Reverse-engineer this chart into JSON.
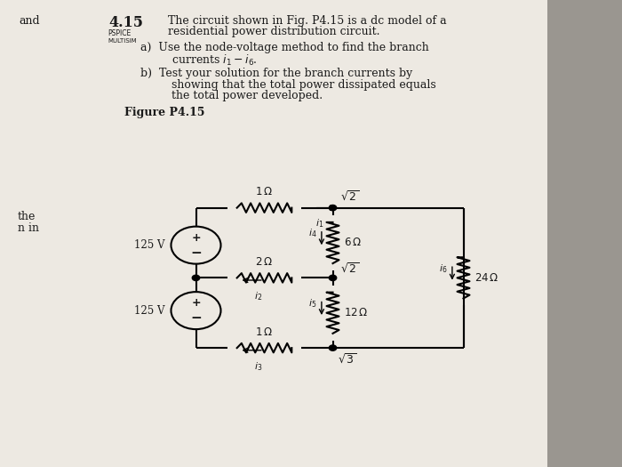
{
  "bg_color": "#c8c4bc",
  "paper_color": "#ede9e2",
  "text_color": "#1a1a1a",
  "circuit": {
    "xl": 0.315,
    "xm": 0.535,
    "xr": 0.745,
    "yt": 0.555,
    "ym": 0.405,
    "yb": 0.255
  },
  "labels": {
    "and": [
      0.025,
      0.965
    ],
    "the": [
      0.025,
      0.535
    ],
    "n_in": [
      0.025,
      0.51
    ],
    "problem_num": "4.15",
    "pspice": "PSPICE",
    "multisim": "MULTISIM",
    "figure": "Figure P4.15",
    "header1": "The circuit shown in Fig. P4.15 is a dc model of a",
    "header2": "residential power distribution circuit.",
    "part_a1": "a)  Use the node-voltage method to find the branch",
    "part_a2": "currents i₁ – i₆.",
    "part_b1": "b)  Test your solution for the branch currents by",
    "part_b2": "showing that the total power dissipated equals",
    "part_b3": "the total power developed."
  }
}
